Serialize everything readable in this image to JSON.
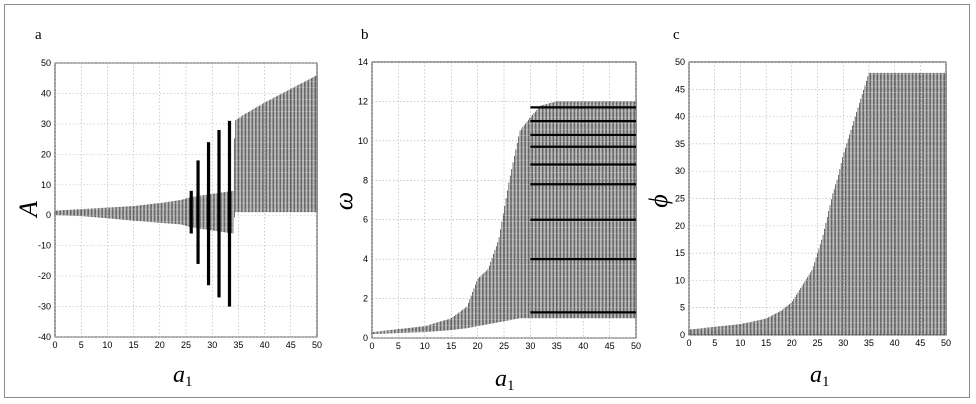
{
  "chart_data": [
    {
      "type": "scatter",
      "panel_label": "a",
      "xlabel": "a",
      "xlabel_sub": "1",
      "ylabel": "A",
      "xlim": [
        0,
        50
      ],
      "ylim": [
        -40,
        50
      ],
      "xticks": [
        0,
        5,
        10,
        15,
        20,
        25,
        30,
        35,
        40,
        45,
        50
      ],
      "yticks": [
        -40,
        -30,
        -20,
        -10,
        0,
        10,
        20,
        30,
        40,
        50
      ],
      "grid": true,
      "dense_envelope": {
        "x": [
          0,
          5,
          10,
          15,
          20,
          24,
          26,
          28,
          30,
          32,
          34,
          34.3,
          36,
          40,
          45,
          50
        ],
        "upper": [
          1.5,
          2,
          2.5,
          3,
          4,
          5,
          6,
          6.5,
          7,
          7.5,
          8,
          31,
          33,
          37,
          41.5,
          46
        ],
        "lower": [
          0,
          -0.3,
          -1,
          -1.8,
          -2.5,
          -3,
          -4,
          -4.5,
          -5,
          -5.5,
          -6,
          1,
          1,
          1,
          1,
          1
        ]
      },
      "spikes": [
        {
          "x": 26.0,
          "ymin": -6,
          "ymax": 8
        },
        {
          "x": 27.3,
          "ymin": -16,
          "ymax": 18
        },
        {
          "x": 29.3,
          "ymin": -23,
          "ymax": 24
        },
        {
          "x": 31.3,
          "ymin": -27,
          "ymax": 28
        },
        {
          "x": 33.3,
          "ymin": -30,
          "ymax": 31
        }
      ]
    },
    {
      "type": "scatter",
      "panel_label": "b",
      "xlabel": "a",
      "xlabel_sub": "1",
      "ylabel": "ω",
      "xlim": [
        0,
        50
      ],
      "ylim": [
        0,
        14
      ],
      "xticks": [
        0,
        5,
        10,
        15,
        20,
        25,
        30,
        35,
        40,
        45,
        50
      ],
      "yticks": [
        0,
        2,
        4,
        6,
        8,
        10,
        12,
        14
      ],
      "grid": true,
      "dense_envelope": {
        "x": [
          0,
          10,
          15,
          18,
          20,
          22,
          24,
          26,
          28,
          30,
          32,
          35,
          40,
          45,
          50
        ],
        "upper": [
          0.3,
          0.6,
          1.0,
          1.6,
          3.0,
          3.5,
          5.0,
          8.0,
          10.5,
          11.2,
          11.8,
          12.0,
          12.0,
          12.0,
          12.0
        ],
        "lower": [
          0.2,
          0.3,
          0.4,
          0.5,
          0.6,
          0.7,
          0.8,
          0.9,
          1.0,
          1.0,
          1.0,
          1.0,
          1.0,
          1.0,
          1.0
        ]
      },
      "dark_bands": [
        1.3,
        4.0,
        6.0,
        7.8,
        8.8,
        9.7,
        10.3,
        11.0,
        11.7
      ],
      "bands_start_x": 30
    },
    {
      "type": "scatter",
      "panel_label": "c",
      "xlabel": "a",
      "xlabel_sub": "1",
      "ylabel": "ϕ",
      "xlim": [
        0,
        50
      ],
      "ylim": [
        0,
        50
      ],
      "xticks": [
        0,
        5,
        10,
        15,
        20,
        25,
        30,
        35,
        40,
        45,
        50
      ],
      "yticks": [
        0,
        5,
        10,
        15,
        20,
        25,
        30,
        35,
        40,
        45,
        50
      ],
      "grid": true,
      "dense_envelope": {
        "x": [
          0,
          10,
          15,
          18,
          20,
          22,
          24,
          25,
          26,
          27,
          28,
          29,
          30,
          31,
          32,
          33,
          34,
          35,
          50
        ],
        "upper": [
          1,
          2,
          3,
          4.5,
          6,
          9,
          12,
          15,
          18,
          22,
          26,
          29,
          33,
          36,
          39,
          42,
          45,
          48,
          48
        ],
        "lower": [
          0,
          0,
          0,
          0,
          0,
          0,
          0,
          0,
          0,
          0,
          0,
          0,
          0,
          0,
          0,
          0,
          0,
          0,
          0
        ]
      }
    }
  ]
}
